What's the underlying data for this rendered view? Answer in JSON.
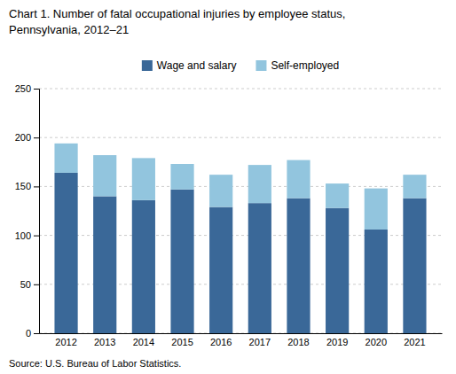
{
  "chart_data": {
    "type": "bar",
    "stacked": true,
    "title": "Chart 1. Number of fatal occupational injuries by employee status,",
    "subtitle": "Pennsylvania, 2012–21",
    "annotations": [
      "Source: U.S. Bureau of Labor Statistics."
    ],
    "categories": [
      "2012",
      "2013",
      "2014",
      "2015",
      "2016",
      "2017",
      "2018",
      "2019",
      "2020",
      "2021"
    ],
    "series": [
      {
        "name": "Wage and salary",
        "color": "#3A6898",
        "values": [
          164,
          140,
          136,
          147,
          129,
          133,
          138,
          128,
          106,
          138
        ]
      },
      {
        "name": "Self-employed",
        "color": "#92C5DE",
        "values": [
          30,
          42,
          43,
          26,
          33,
          39,
          39,
          25,
          42,
          24
        ]
      }
    ],
    "ylim": [
      0,
      250
    ],
    "yticks": [
      0,
      50,
      100,
      150,
      200,
      250
    ],
    "grid": true,
    "legend": "top"
  }
}
